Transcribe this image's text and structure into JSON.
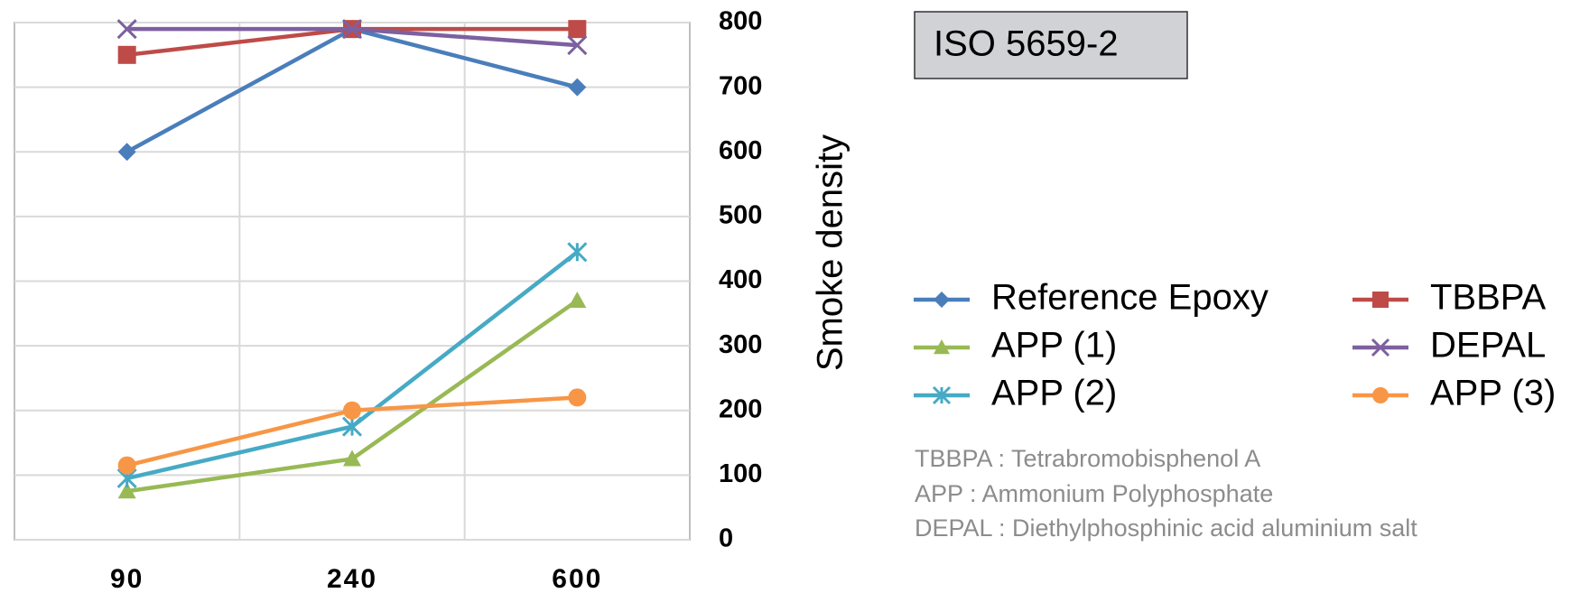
{
  "chart_data": {
    "type": "line",
    "categories": [
      "90",
      "240",
      "600"
    ],
    "y_label": "Smoke density",
    "annotation": "ISO 5659-2",
    "notes": [
      "TBBPA : Tetrabromobisphenol A",
      "APP : Ammonium Polyphosphate",
      "DEPAL : Diethylphosphinic acid aluminium salt"
    ],
    "ylim": [
      0,
      800
    ],
    "yticks": [
      0,
      100,
      200,
      300,
      400,
      500,
      600,
      700,
      800
    ],
    "grid": true,
    "series": [
      {
        "name": "Reference Epoxy",
        "color": "#4a7ebb",
        "marker": "diamond",
        "values": [
          600,
          790,
          700
        ]
      },
      {
        "name": "TBBPA",
        "color": "#be4b48",
        "marker": "square",
        "values": [
          750,
          790,
          790
        ]
      },
      {
        "name": "APP (1)",
        "color": "#98b954",
        "marker": "triangle",
        "values": [
          75,
          125,
          370
        ]
      },
      {
        "name": "DEPAL",
        "color": "#7d60a0",
        "marker": "x",
        "values": [
          790,
          790,
          765
        ]
      },
      {
        "name": "APP (2)",
        "color": "#46aac5",
        "marker": "asterisk",
        "values": [
          95,
          175,
          445
        ]
      },
      {
        "name": "APP (3)",
        "color": "#f79646",
        "marker": "circle",
        "values": [
          115,
          200,
          220
        ]
      }
    ]
  }
}
